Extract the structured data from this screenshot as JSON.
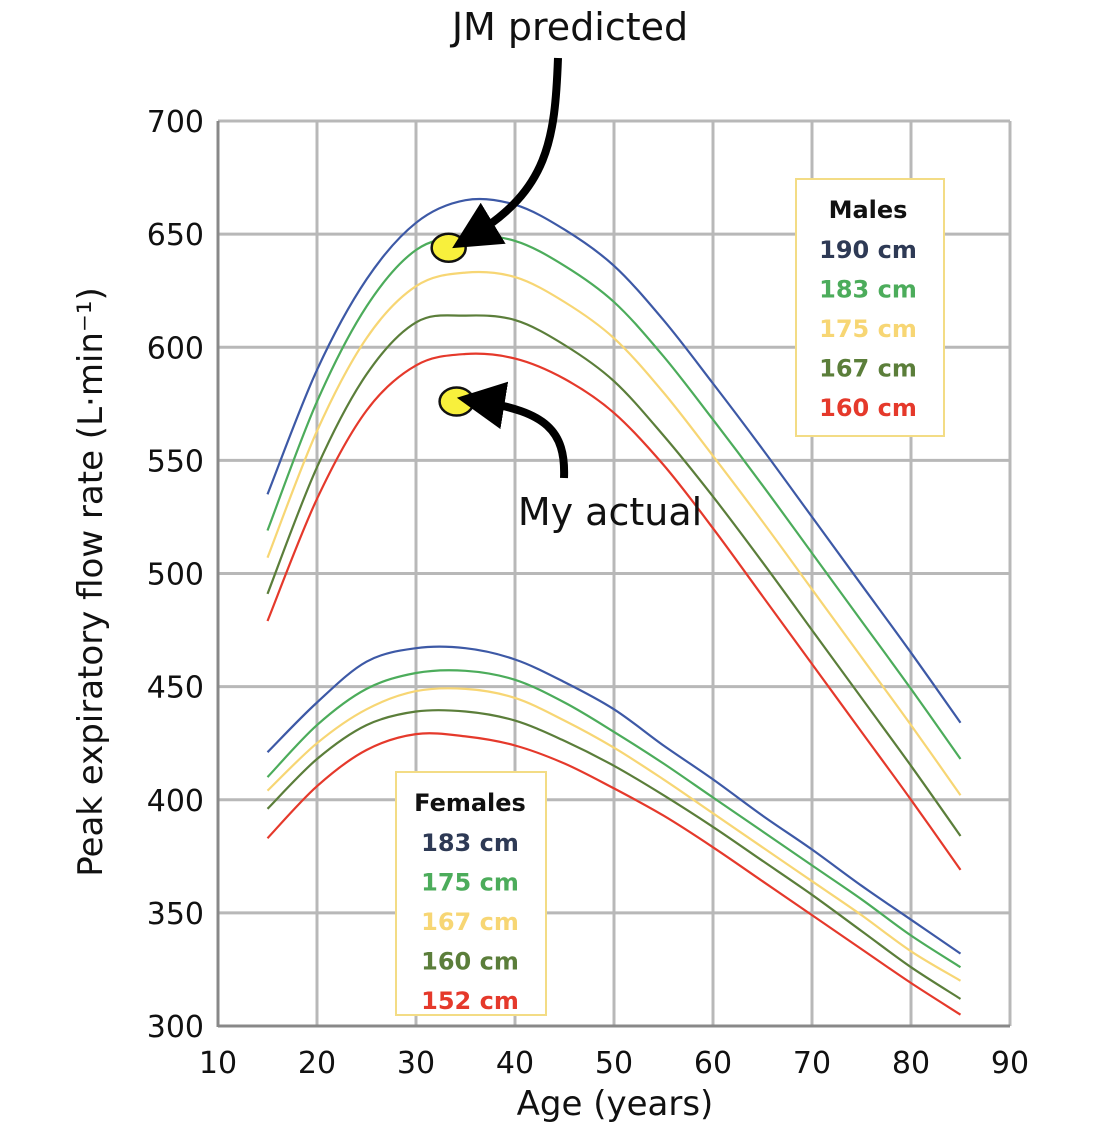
{
  "chart_data": {
    "type": "line",
    "xlabel": "Age (years)",
    "ylabel": "Peak expiratory flow rate (L·min⁻¹)",
    "xlim": [
      10,
      90
    ],
    "ylim": [
      300,
      700
    ],
    "xticks": [
      10,
      20,
      30,
      40,
      50,
      60,
      70,
      80,
      90
    ],
    "yticks": [
      300,
      350,
      400,
      450,
      500,
      550,
      600,
      650,
      700
    ],
    "grid": true,
    "x": [
      15,
      20,
      25,
      30,
      35,
      40,
      45,
      50,
      55,
      60,
      65,
      70,
      75,
      80,
      85
    ],
    "groups": [
      {
        "name": "Males",
        "legend_position": "top-right",
        "series": [
          {
            "name": "190 cm",
            "color": "#3d59a6",
            "values": [
              535,
              590,
              630,
              655,
              665,
              663,
              652,
              636,
              612,
              584,
              555,
              525,
              495,
              465,
              434
            ]
          },
          {
            "name": "183 cm",
            "color": "#4cac5b",
            "values": [
              519,
              576,
              618,
              643,
              649,
              647,
              636,
              620,
              596,
              568,
              539,
              509,
              479,
              449,
              418
            ]
          },
          {
            "name": "175 cm",
            "color": "#f7d674",
            "values": [
              507,
              563,
              604,
              627,
              633,
              631,
              620,
              604,
              580,
              552,
              523,
              493,
              463,
              433,
              402
            ]
          },
          {
            "name": "167 cm",
            "color": "#5b7e3a",
            "values": [
              491,
              547,
              588,
              611,
              614,
              612,
              601,
              585,
              561,
              534,
              505,
              475,
              445,
              415,
              384
            ]
          },
          {
            "name": "160 cm",
            "color": "#e5392b",
            "values": [
              479,
              533,
              572,
              592,
              597,
              595,
              586,
              571,
              548,
              520,
              490,
              460,
              430,
              400,
              369
            ]
          }
        ]
      },
      {
        "name": "Females",
        "legend_position": "bottom-left",
        "series": [
          {
            "name": "183 cm",
            "color": "#3d59a6",
            "values": [
              421,
              443,
              461,
              467,
              467,
              462,
              452,
              440,
              424,
              409,
              393,
              378,
              362,
              347,
              332
            ]
          },
          {
            "name": "175 cm",
            "color": "#4cac5b",
            "values": [
              410,
              433,
              449,
              456,
              457,
              453,
              443,
              430,
              416,
              401,
              386,
              371,
              356,
              340,
              326
            ]
          },
          {
            "name": "167 cm",
            "color": "#f7d674",
            "values": [
              404,
              425,
              440,
              448,
              449,
              445,
              435,
              423,
              409,
              394,
              379,
              364,
              349,
              333,
              320
            ]
          },
          {
            "name": "160 cm",
            "color": "#5b7e3a",
            "values": [
              396,
              418,
              433,
              439,
              439,
              435,
              426,
              415,
              402,
              388,
              373,
              358,
              342,
              326,
              312
            ]
          },
          {
            "name": "152 cm",
            "color": "#e5392b",
            "values": [
              383,
              406,
              422,
              429,
              428,
              424,
              416,
              405,
              393,
              379,
              364,
              349,
              334,
              319,
              305
            ]
          }
        ]
      }
    ],
    "points": [
      {
        "name": "JM predicted",
        "x": 33.3,
        "y": 644,
        "color": "#f8f03c"
      },
      {
        "name": "My actual",
        "x": 34.1,
        "y": 576,
        "color": "#f8f03c"
      }
    ],
    "annotations": [
      {
        "text": "JM predicted",
        "target": "JM predicted"
      },
      {
        "text": "My actual",
        "target": "My actual"
      }
    ]
  }
}
